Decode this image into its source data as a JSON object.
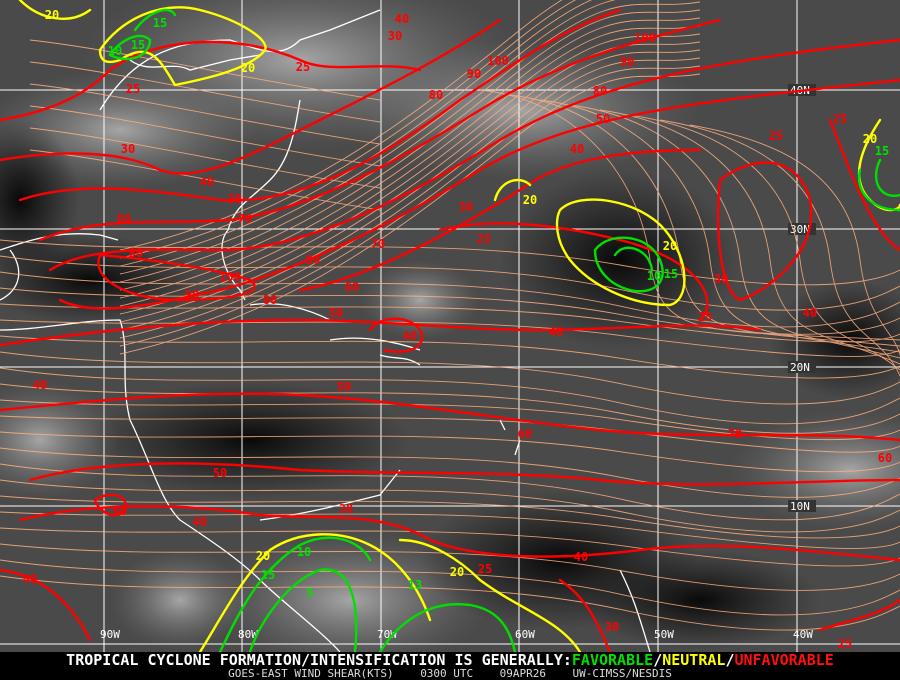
{
  "map": {
    "product": "GOES-EAST WIND SHEAR (KTS)",
    "colors": {
      "favorable": "#00e000",
      "neutral": "#ffff00",
      "unfavorable": "#ff0000",
      "streamlines": "#ffb080",
      "coastline": "#ffffff",
      "grid": "#ffffff"
    },
    "longitude_labels": [
      "90W",
      "80W",
      "70W",
      "60W",
      "50W",
      "40W"
    ],
    "latitude_labels": [
      "40N",
      "30N",
      "20N",
      "10N"
    ],
    "contour_labels": [
      {
        "v": "20",
        "c": "neutral"
      },
      {
        "v": "10",
        "c": "favorable"
      },
      {
        "v": "15",
        "c": "favorable"
      },
      {
        "v": "15",
        "c": "favorable"
      },
      {
        "v": "20",
        "c": "neutral"
      },
      {
        "v": "25",
        "c": "unfavorable"
      },
      {
        "v": "25",
        "c": "unfavorable"
      },
      {
        "v": "30",
        "c": "unfavorable"
      },
      {
        "v": "40",
        "c": "unfavorable"
      },
      {
        "v": "30",
        "c": "unfavorable"
      },
      {
        "v": "70",
        "c": "unfavorable"
      },
      {
        "v": "60",
        "c": "unfavorable"
      },
      {
        "v": "80",
        "c": "unfavorable"
      },
      {
        "v": "100",
        "c": "unfavorable"
      },
      {
        "v": "90",
        "c": "unfavorable"
      },
      {
        "v": "80",
        "c": "unfavorable"
      },
      {
        "v": "90",
        "c": "unfavorable"
      },
      {
        "v": "70",
        "c": "unfavorable"
      },
      {
        "v": "60",
        "c": "unfavorable"
      },
      {
        "v": "50",
        "c": "unfavorable"
      },
      {
        "v": "40",
        "c": "unfavorable"
      },
      {
        "v": "40",
        "c": "unfavorable"
      },
      {
        "v": "30",
        "c": "unfavorable"
      },
      {
        "v": "80",
        "c": "unfavorable"
      },
      {
        "v": "90",
        "c": "unfavorable"
      },
      {
        "v": "100",
        "c": "unfavorable"
      },
      {
        "v": "100",
        "c": "unfavorable"
      },
      {
        "v": "90",
        "c": "unfavorable"
      },
      {
        "v": "80",
        "c": "unfavorable"
      },
      {
        "v": "50",
        "c": "unfavorable"
      },
      {
        "v": "40",
        "c": "unfavorable"
      },
      {
        "v": "30",
        "c": "unfavorable"
      },
      {
        "v": "25",
        "c": "unfavorable"
      },
      {
        "v": "20",
        "c": "neutral"
      },
      {
        "v": "20",
        "c": "neutral"
      },
      {
        "v": "10",
        "c": "favorable"
      },
      {
        "v": "15",
        "c": "favorable"
      },
      {
        "v": "25",
        "c": "unfavorable"
      },
      {
        "v": "30",
        "c": "unfavorable"
      },
      {
        "v": "25",
        "c": "unfavorable"
      },
      {
        "v": "25",
        "c": "unfavorable"
      },
      {
        "v": "20",
        "c": "neutral"
      },
      {
        "v": "15",
        "c": "favorable"
      },
      {
        "v": "40",
        "c": "unfavorable"
      },
      {
        "v": "40",
        "c": "unfavorable"
      },
      {
        "v": "40",
        "c": "unfavorable"
      },
      {
        "v": "50",
        "c": "unfavorable"
      },
      {
        "v": "60",
        "c": "unfavorable"
      },
      {
        "v": "70",
        "c": "unfavorable"
      },
      {
        "v": "60",
        "c": "unfavorable"
      },
      {
        "v": "50",
        "c": "unfavorable"
      },
      {
        "v": "60",
        "c": "unfavorable"
      },
      {
        "v": "40",
        "c": "unfavorable"
      },
      {
        "v": "30",
        "c": "unfavorable"
      },
      {
        "v": "20",
        "c": "neutral"
      },
      {
        "v": "10",
        "c": "favorable"
      },
      {
        "v": "15",
        "c": "favorable"
      },
      {
        "v": "5",
        "c": "favorable"
      },
      {
        "v": "13",
        "c": "favorable"
      },
      {
        "v": "20",
        "c": "neutral"
      },
      {
        "v": "25",
        "c": "unfavorable"
      },
      {
        "v": "40",
        "c": "unfavorable"
      },
      {
        "v": "40",
        "c": "unfavorable"
      },
      {
        "v": "30",
        "c": "unfavorable"
      },
      {
        "v": "25",
        "c": "unfavorable"
      }
    ]
  },
  "caption": {
    "headline_prefix": "TROPICAL CYCLONE FORMATION/INTENSIFICATION IS GENERALLY:",
    "favorable": "FAVORABLE",
    "sep": "/",
    "neutral": "NEUTRAL",
    "unfavorable": "UNFAVORABLE",
    "product": "GOES-EAST WIND SHEAR(KTS)",
    "time": "0300 UTC",
    "date": "09APR26",
    "source": "UW-CIMSS/NESDIS"
  }
}
